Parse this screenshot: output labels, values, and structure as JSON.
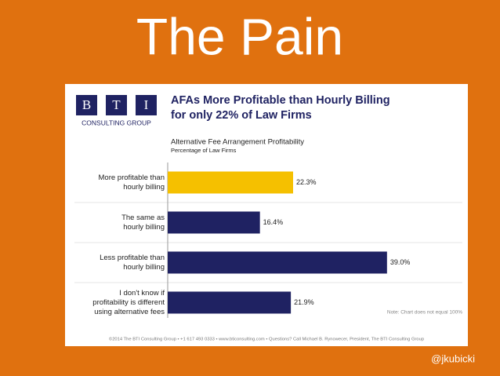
{
  "slide_title": "The Pain",
  "logo": {
    "letters": [
      "B",
      "T",
      "I"
    ],
    "name": "CONSULTING GROUP"
  },
  "chart_data": {
    "type": "hbar",
    "title": [
      "AFAs More Profitable than Hourly Billing",
      "for only 22% of Law Firms"
    ],
    "subtitle": "Alternative Fee Arrangement Profitability",
    "value_axis_label": "Percentage of Law Firms",
    "categories": [
      [
        "More profitable than",
        "hourly billing"
      ],
      [
        "The same as",
        "hourly billing"
      ],
      [
        "Less profitable than",
        "hourly billing"
      ],
      [
        "I don't know if",
        "profitability is different",
        "using alternative fees"
      ]
    ],
    "values": [
      22.3,
      16.4,
      39.0,
      21.9
    ],
    "value_labels": [
      "22.3%",
      "16.4%",
      "39.0%",
      "21.9%"
    ],
    "colors": [
      "#f5c000",
      "#1f2262",
      "#1f2262",
      "#1f2262"
    ],
    "xlim": [
      0,
      40
    ],
    "note": "Note: Chart does not equal 100%"
  },
  "footer": "©2014 The BTI Consulting Group • +1 617 493 0333 • www.bticonsulting.com • Questions? Call Michael B. Rynowecer, President, The BTI Consulting Group",
  "handle": "@jkubicki"
}
